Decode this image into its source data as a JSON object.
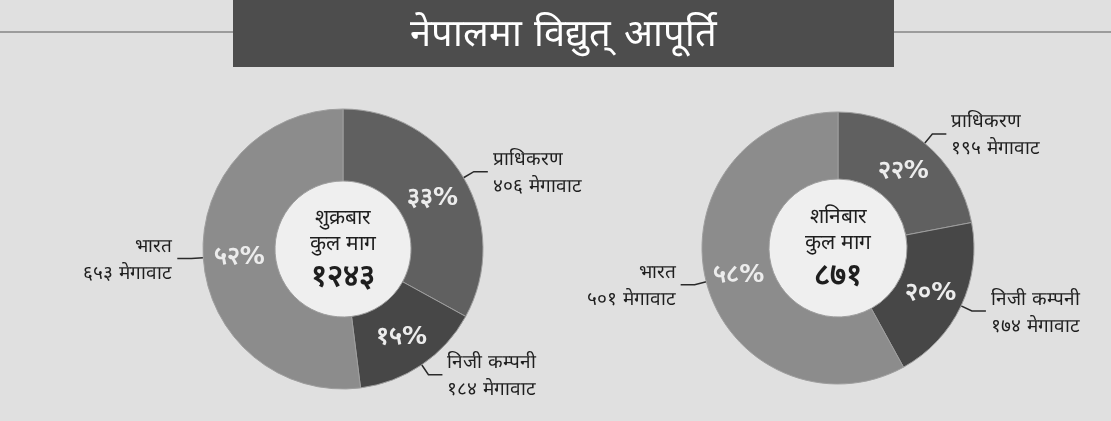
{
  "chart_data": [
    {
      "type": "donut",
      "title": "नेपालमा विद्युत् आपूर्ति",
      "categories": [
        "प्राधिकरण\n४०६ मेगावाट",
        "निजी कम्पनी\n१८४ मेगावाट",
        "भारत\n६५३ मेगावाट"
      ],
      "values": [
        33,
        15,
        52
      ],
      "colors": [
        "#606060",
        "#474747",
        "#8c8c8c"
      ],
      "value_labels": [
        "३३%",
        "१५%",
        "५२%"
      ],
      "annotations": [
        "शुक्रबार",
        "कुल माग",
        "१२४३"
      ]
    },
    {
      "type": "donut",
      "categories": [
        "प्राधिकरण\n१९५ मेगावाट",
        "निजी कम्पनी\n१७४ मेगावाट",
        "भारत\n५०१ मेगावाट"
      ],
      "values": [
        22,
        20,
        58
      ],
      "colors": [
        "#606060",
        "#474747",
        "#8c8c8c"
      ],
      "value_labels": [
        "२२%",
        "२०%",
        "५८%"
      ],
      "annotations": [
        "शनिबार",
        "कुल माग",
        "८७१"
      ]
    }
  ]
}
